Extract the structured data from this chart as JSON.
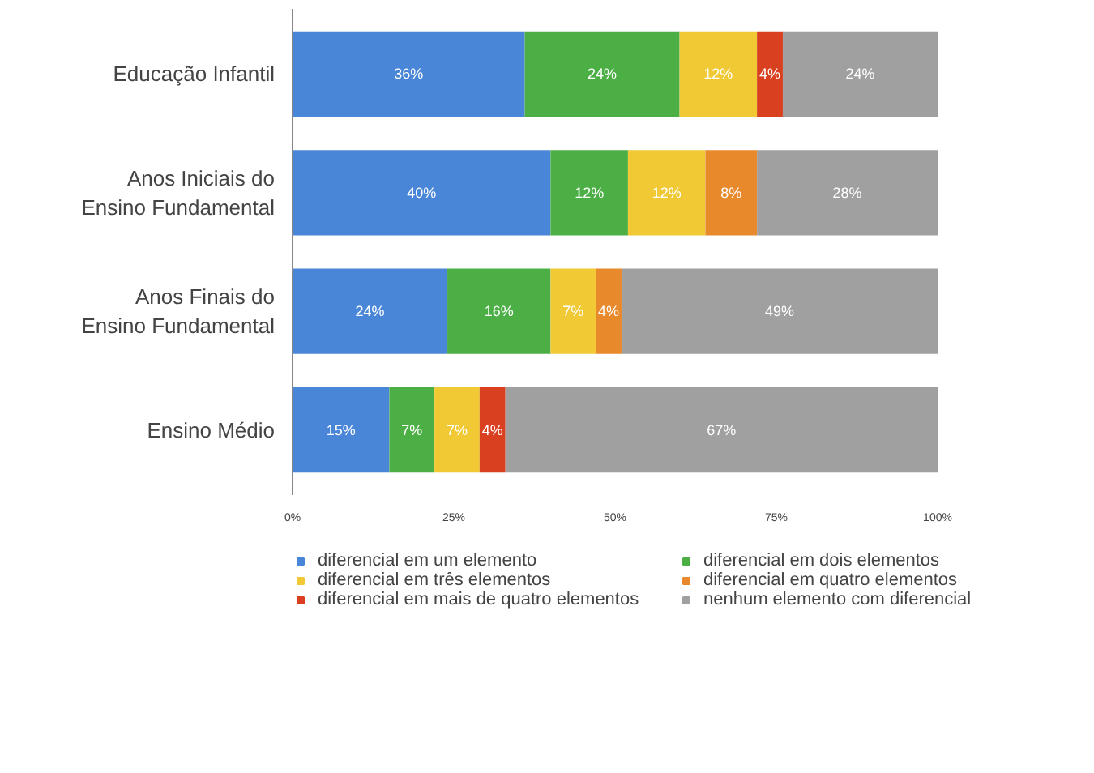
{
  "chart_data": {
    "type": "bar",
    "orientation": "horizontal",
    "stacked": true,
    "categories": [
      "Educação Infantil",
      "Anos Iniciais do Ensino Fundamental",
      "Anos Finais do Ensino Fundamental",
      "Ensino Médio"
    ],
    "series": [
      {
        "name": "diferencial em um elemento",
        "color": "#4a86d8",
        "values": [
          36,
          40,
          24,
          15
        ],
        "value_labels": [
          "36%",
          "40%",
          "24%",
          "15%"
        ]
      },
      {
        "name": "diferencial em dois elementos",
        "color": "#4caf45",
        "values": [
          24,
          12,
          16,
          7
        ],
        "value_labels": [
          "24%",
          "12%",
          "16%",
          "7%"
        ]
      },
      {
        "name": "diferencial em três elementos",
        "color": "#f0c935",
        "values": [
          12,
          12,
          7,
          7
        ],
        "value_labels": [
          "12%",
          "12%",
          "7%",
          "7%"
        ]
      },
      {
        "name": "diferencial em quatro elementos",
        "color": "#e8892b",
        "values": [
          0,
          8,
          4,
          0
        ],
        "value_labels": [
          null,
          "8%",
          "4%",
          null
        ]
      },
      {
        "name": "diferencial em mais de quatro elementos",
        "color": "#d9401f",
        "values": [
          4,
          0,
          0,
          4
        ],
        "value_labels": [
          "4%",
          null,
          null,
          "4%"
        ]
      },
      {
        "name": "nenhum elemento com diferencial",
        "color": "#a0a0a0",
        "values": [
          24,
          28,
          49,
          67
        ],
        "value_labels": [
          "24%",
          "28%",
          "49%",
          "67%"
        ]
      }
    ],
    "xlim": [
      0,
      100
    ],
    "xticks": [
      {
        "value": 0,
        "label": "0%"
      },
      {
        "value": 25,
        "label": "25%"
      },
      {
        "value": 50,
        "label": "50%"
      },
      {
        "value": 75,
        "label": "75%"
      },
      {
        "value": 100,
        "label": "100%"
      }
    ],
    "grid": false,
    "legend": "bottom"
  }
}
